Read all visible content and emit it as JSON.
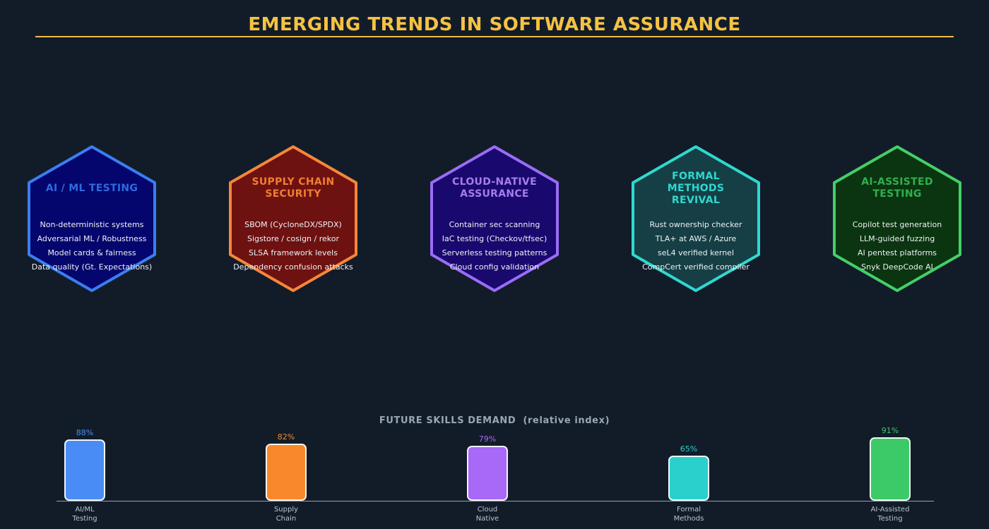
{
  "page": {
    "title": "EMERGING TRENDS IN SOFTWARE ASSURANCE",
    "title_color": "#f6c242",
    "underline_color": "#f0bc42",
    "background_color": "#121c29"
  },
  "trends": [
    {
      "title": "AI / ML TESTING",
      "items": [
        "Non-deterministic systems",
        "Adversarial ML / Robustness",
        "Model cards & fairness",
        "Data quality (Gt. Expectations)"
      ],
      "colors": {
        "border": "#3b7ef0",
        "fill": "#04066d",
        "title": "#2e6ae0"
      }
    },
    {
      "title": "SUPPLY CHAIN SECURITY",
      "items": [
        "SBOM (CycloneDX/SPDX)",
        "Sigstore / cosign / rekor",
        "SLSA framework levels",
        "Dependency confusion attacks"
      ],
      "colors": {
        "border": "#f5873a",
        "fill": "#6e1111",
        "title": "#ef7f2f"
      }
    },
    {
      "title": "CLOUD-NATIVE ASSURANCE",
      "items": [
        "Container sec scanning",
        "IaC testing (Checkov/tfsec)",
        "Serverless testing patterns",
        "Cloud config validation"
      ],
      "colors": {
        "border": "#9b6cf7",
        "fill": "#19096e",
        "title": "#a57cf0"
      }
    },
    {
      "title": "FORMAL METHODS REVIVAL",
      "items": [
        "Rust ownership checker",
        "TLA+ at AWS / Azure",
        "seL4 verified kernel",
        "CompCert verified compiler"
      ],
      "colors": {
        "border": "#30d8ce",
        "fill": "#153f45",
        "title": "#2fd8d0"
      }
    },
    {
      "title": "AI-ASSISTED TESTING",
      "items": [
        "Copilot test generation",
        "LLM-guided fuzzing",
        "AI pentest platforms",
        "Snyk DeepCode AI"
      ],
      "colors": {
        "border": "#44cf68",
        "fill": "#0a3510",
        "title": "#2fb050"
      }
    }
  ],
  "chart_data": {
    "type": "bar",
    "title": "FUTURE SKILLS DEMAND  (relative index)",
    "categories": [
      "AI/ML\nTesting",
      "Supply\nChain",
      "Cloud\nNative",
      "Formal\nMethods",
      "AI-Assisted\nTesting"
    ],
    "values": [
      88,
      82,
      79,
      65,
      91
    ],
    "value_labels": [
      "88%",
      "82%",
      "79%",
      "65%",
      "91%"
    ],
    "bar_colors": [
      "#4a8cf5",
      "#f8882b",
      "#a868f8",
      "#2ad0cc",
      "#3cc968"
    ],
    "ylabel": "",
    "xlabel": "",
    "ylim": [
      0,
      100
    ],
    "grid": false,
    "legend": false
  }
}
